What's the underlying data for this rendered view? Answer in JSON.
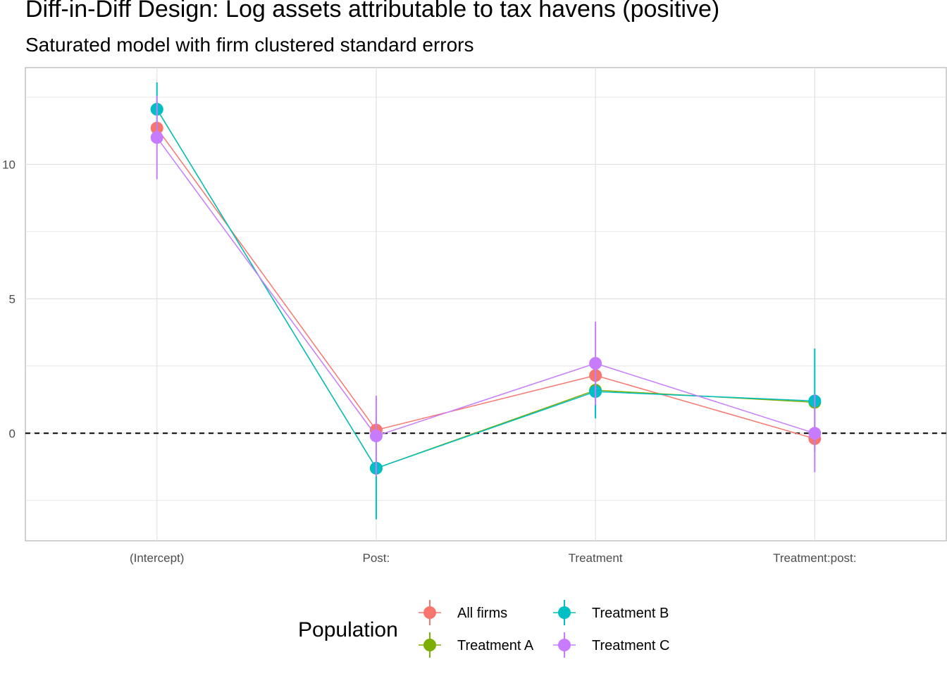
{
  "chart_data": {
    "type": "line",
    "title": "Diff-in-Diff Design: Log assets attributable to tax havens (positive)",
    "subtitle": "Saturated model with firm clustered standard errors",
    "xlabel": "",
    "ylabel": "",
    "categories": [
      "(Intercept)",
      "Post:",
      "Treatment",
      "Treatment:post:"
    ],
    "ylim": [
      -4,
      13.6
    ],
    "yticks": [
      0,
      5,
      10
    ],
    "reference_line": 0,
    "grid": true,
    "legend": {
      "title": "Population",
      "placement": "bottom"
    },
    "colors": {
      "All firms": "#F8766D",
      "Treatment A": "#7CAE00",
      "Treatment B": "#00BFC4",
      "Treatment C": "#C77CFF",
      "reference": "#000000",
      "grid": "#e0e0e0",
      "panel_border": "#b3b3b3"
    },
    "series": [
      {
        "name": "All firms",
        "values": [
          11.35,
          0.12,
          2.15,
          -0.2
        ],
        "lower": [
          11.35,
          0.12,
          2.15,
          -0.2
        ],
        "upper": [
          11.35,
          0.12,
          2.15,
          -0.2
        ]
      },
      {
        "name": "Treatment A",
        "values": [
          12.05,
          -1.3,
          1.6,
          1.15
        ],
        "lower": [
          12.05,
          -1.3,
          1.6,
          1.15
        ],
        "upper": [
          12.05,
          -1.3,
          1.6,
          1.15
        ]
      },
      {
        "name": "Treatment B",
        "values": [
          12.05,
          -1.3,
          1.55,
          1.2
        ],
        "lower": [
          11.0,
          -3.2,
          0.55,
          -0.7
        ],
        "upper": [
          13.05,
          0.6,
          2.55,
          3.15
        ]
      },
      {
        "name": "Treatment C",
        "values": [
          11.0,
          -0.1,
          2.6,
          0.0
        ],
        "lower": [
          9.45,
          -1.6,
          1.05,
          -1.45
        ],
        "upper": [
          12.55,
          1.4,
          4.15,
          1.45
        ]
      }
    ]
  }
}
